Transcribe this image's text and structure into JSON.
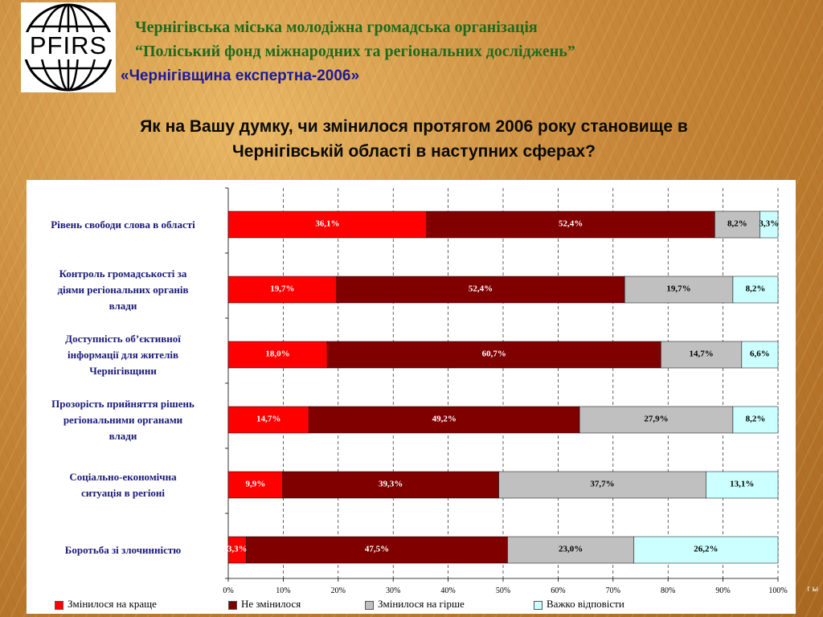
{
  "header": {
    "logo_text": "PFIRS",
    "org_line1": "Чернігівська міська молодіжна громадська організація",
    "org_line2": "“Поліський фонд міжнародних та регіональних досліджень”",
    "project": "«Чернігівщина експертна-2006»"
  },
  "question": {
    "line1": "Як на Вашу думку, чи змінилося протягом 2006 року становище в",
    "line2": "Чернігівській області в наступних сферах?"
  },
  "corner_mark": "г ы",
  "chart_data": {
    "type": "bar",
    "orientation": "horizontal-stacked-100",
    "categories": [
      "Рівень свободи слова в області",
      "Контроль громадськості за діями регіональних органів влади",
      "Доступність об’єктивної інформації для жителів Чернігівщини",
      "Прозорість прийняття рішень регіональними органами влади",
      "Соціально-економічна ситуація в регіоні",
      "Боротьба зі злочинністю"
    ],
    "category_lines": [
      [
        "Рівень свободи слова в області"
      ],
      [
        "Контроль громадськості за",
        "діями регіональних органів",
        "влади"
      ],
      [
        "Доступність об’єктивної",
        "інформації для жителів",
        "Чернігівщини"
      ],
      [
        "Прозорість прийняття рішень",
        "регіональними органами",
        "влади"
      ],
      [
        "Соціально-економічна",
        "ситуація в регіоні"
      ],
      [
        "Боротьба зі злочинністю"
      ]
    ],
    "series": [
      {
        "name": "Змінилося на краще",
        "color": "#ff0000",
        "values": [
          36.1,
          19.7,
          18.0,
          14.7,
          9.9,
          3.3
        ],
        "labels": [
          "36,1%",
          "19,7%",
          "18,0%",
          "14,7%",
          "9,9%",
          "3,3%"
        ]
      },
      {
        "name": "Не змінилося",
        "color": "#800000",
        "values": [
          52.4,
          52.4,
          60.7,
          49.2,
          39.3,
          47.5
        ],
        "labels": [
          "52,4%",
          "52,4%",
          "60,7%",
          "49,2%",
          "39,3%",
          "47,5%"
        ]
      },
      {
        "name": "Змінилося на гірше",
        "color": "#c0c0c0",
        "values": [
          8.2,
          19.7,
          14.7,
          27.9,
          37.7,
          23.0
        ],
        "labels": [
          "8,2%",
          "19,7%",
          "14,7%",
          "27,9%",
          "37,7%",
          "23,0%"
        ]
      },
      {
        "name": "Важко відповісти",
        "color": "#ccffff",
        "values": [
          3.3,
          8.2,
          6.6,
          8.2,
          13.1,
          26.2
        ],
        "labels": [
          "3,3%",
          "8,2%",
          "6,6%",
          "8,2%",
          "13,1%",
          "26,2%"
        ]
      }
    ],
    "x_ticks": [
      "0%",
      "10%",
      "20%",
      "30%",
      "40%",
      "50%",
      "60%",
      "70%",
      "80%",
      "90%",
      "100%"
    ],
    "xlim": [
      0,
      100
    ],
    "grid": true,
    "legend_position": "bottom"
  }
}
